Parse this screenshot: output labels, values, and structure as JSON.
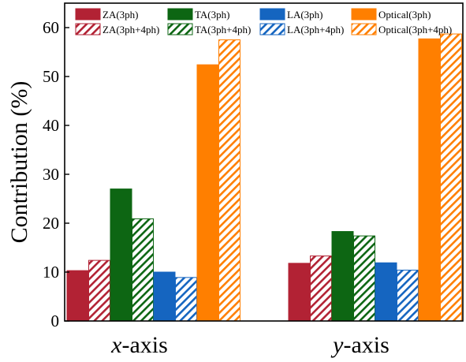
{
  "chart_data": {
    "type": "bar",
    "title": "",
    "xlabel": "",
    "ylabel": "Contribution (%)",
    "ylim": [
      0,
      65
    ],
    "yticks": [
      0,
      10,
      20,
      30,
      40,
      50,
      60
    ],
    "grid": false,
    "legend_position": "top",
    "categories": [
      {
        "italic": "x",
        "rest": "-axis"
      },
      {
        "italic": "y",
        "rest": "-axis"
      }
    ],
    "series": [
      {
        "name": "ZA(3ph)",
        "color": "#b22234",
        "hatched": false,
        "values": [
          10.3,
          11.8
        ]
      },
      {
        "name": "ZA(3ph+4ph)",
        "color": "#b22234",
        "hatched": true,
        "values": [
          12.4,
          13.3
        ]
      },
      {
        "name": "TA(3ph)",
        "color": "#0d6613",
        "hatched": false,
        "values": [
          27.0,
          18.3
        ]
      },
      {
        "name": "TA(3ph+4ph)",
        "color": "#0d6613",
        "hatched": true,
        "values": [
          20.9,
          17.4
        ]
      },
      {
        "name": "LA(3ph)",
        "color": "#1565c0",
        "hatched": false,
        "values": [
          10.0,
          11.9
        ]
      },
      {
        "name": "LA(3ph+4ph)",
        "color": "#1565c0",
        "hatched": true,
        "values": [
          8.9,
          10.4
        ]
      },
      {
        "name": "Optical(3ph)",
        "color": "#ff7f00",
        "hatched": false,
        "values": [
          52.4,
          57.7
        ]
      },
      {
        "name": "Optical(3ph+4ph)",
        "color": "#ff7f00",
        "hatched": true,
        "values": [
          57.5,
          58.7
        ]
      }
    ],
    "legend_order": [
      0,
      2,
      4,
      6,
      1,
      3,
      5,
      7
    ]
  }
}
